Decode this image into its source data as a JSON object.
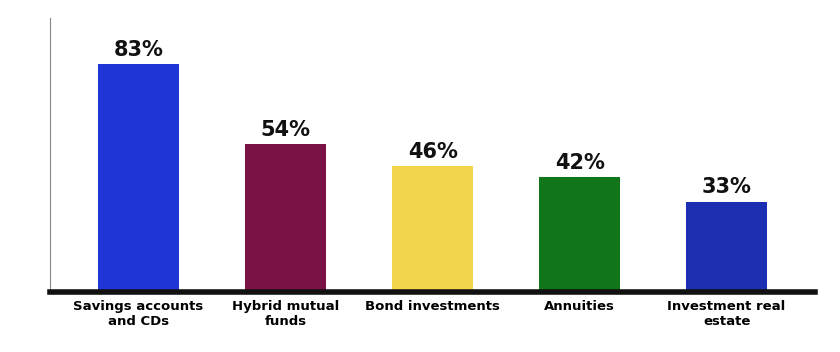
{
  "chart_data": {
    "type": "bar",
    "categories": [
      "Savings accounts and CDs",
      "Hybrid mutual funds",
      "Bond investments",
      "Annuities",
      "Investment real estate"
    ],
    "values": [
      83,
      54,
      46,
      42,
      33
    ],
    "value_labels": [
      "83%",
      "54%",
      "46%",
      "42%",
      "33%"
    ],
    "colors": [
      "#1f35d6",
      "#7a1245",
      "#f2d54a",
      "#11761a",
      "#1c2fb0"
    ],
    "ylim": [
      0,
      100
    ],
    "yticks": [],
    "data_labels": true,
    "tick_labels": "x",
    "grid": false
  }
}
